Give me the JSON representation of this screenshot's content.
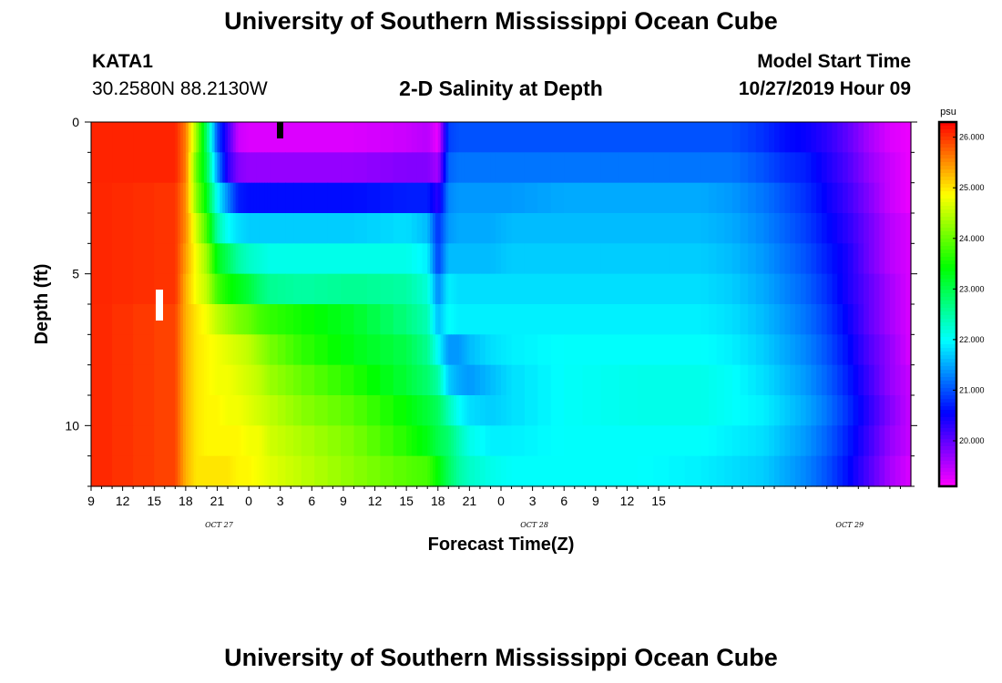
{
  "header": {
    "title": "University of Southern Mississippi Ocean Cube",
    "station": "KATA1",
    "coords": "30.2580N 88.2130W",
    "plot_title": "2-D Salinity at Depth",
    "model_label": "Model Start Time",
    "model_time": "10/27/2019 Hour 09"
  },
  "footer": {
    "title": "University of Southern Mississippi Ocean Cube"
  },
  "chart_data": {
    "type": "heatmap",
    "title": "2-D Salinity at Depth",
    "xlabel": "Forecast Time(Z)",
    "ylabel": "Depth (ft)",
    "x_tick_labels": [
      "9",
      "12",
      "15",
      "18",
      "21",
      "0",
      "3",
      "6",
      "9",
      "12",
      "15",
      "18",
      "21",
      "0",
      "3",
      "6",
      "9",
      "12",
      "15"
    ],
    "x_date_labels": [
      {
        "label": "OCT 27",
        "hour_offset": 12
      },
      {
        "label": "OCT 28",
        "hour_offset": 42
      },
      {
        "label": "OCT 29",
        "hour_offset": 72
      }
    ],
    "x_range_hours": [
      0,
      78
    ],
    "y_ticks": [
      0,
      5,
      10
    ],
    "y_range": [
      0,
      12
    ],
    "colorbar": {
      "unit": "psu",
      "ticks": [
        "20.000",
        "21.000",
        "22.000",
        "23.000",
        "24.000",
        "25.000",
        "26.000"
      ],
      "range": [
        19.1,
        26.3
      ]
    },
    "depth_levels_ft": [
      0.5,
      1.5,
      2.5,
      3.5,
      4.5,
      5.5,
      6.5,
      7.5,
      8.5,
      9.5,
      10.5,
      11.5
    ],
    "time_breakpoints_hours": [
      0,
      8,
      9,
      10,
      11,
      12,
      13,
      14,
      15,
      16,
      17,
      20,
      25,
      30,
      32,
      33,
      34,
      35,
      36,
      38,
      40,
      45,
      52,
      58,
      61,
      64,
      66,
      68,
      70,
      72,
      74,
      76,
      78
    ],
    "salinity_psu": [
      [
        26.1,
        26.1,
        25.6,
        24.3,
        22.8,
        21.0,
        20.2,
        19.4,
        19.3,
        19.3,
        19.3,
        19.3,
        19.3,
        19.4,
        19.5,
        19.2,
        20.9,
        21.0,
        21.0,
        21.0,
        21.0,
        21.0,
        21.0,
        21.0,
        21.0,
        20.8,
        20.6,
        20.5,
        20.3,
        20.0,
        19.6,
        19.3,
        19.2
      ],
      [
        26.1,
        26.1,
        25.6,
        24.0,
        23.0,
        21.4,
        20.3,
        19.8,
        19.7,
        19.7,
        19.7,
        19.7,
        19.7,
        19.8,
        19.8,
        19.6,
        21.1,
        21.2,
        21.2,
        21.2,
        21.2,
        21.2,
        21.2,
        21.2,
        21.2,
        21.0,
        20.8,
        20.7,
        20.4,
        20.1,
        19.7,
        19.4,
        19.2
      ],
      [
        26.1,
        26.0,
        25.5,
        24.2,
        23.3,
        22.0,
        21.3,
        20.7,
        20.6,
        20.6,
        20.6,
        20.6,
        20.6,
        20.7,
        20.7,
        20.3,
        21.3,
        21.4,
        21.4,
        21.4,
        21.4,
        21.5,
        21.5,
        21.5,
        21.4,
        21.2,
        21.0,
        20.8,
        20.5,
        20.2,
        19.8,
        19.4,
        19.2
      ],
      [
        26.1,
        26.0,
        25.5,
        24.6,
        23.8,
        22.5,
        22.0,
        21.8,
        21.7,
        21.7,
        21.7,
        21.7,
        21.7,
        21.8,
        21.6,
        20.8,
        21.4,
        21.5,
        21.5,
        21.5,
        21.6,
        21.6,
        21.6,
        21.6,
        21.5,
        21.3,
        21.1,
        20.9,
        20.6,
        20.3,
        19.9,
        19.5,
        19.3
      ],
      [
        26.1,
        26.0,
        25.4,
        24.8,
        24.3,
        23.3,
        22.9,
        22.5,
        22.3,
        22.2,
        22.1,
        22.1,
        22.1,
        22.1,
        21.9,
        20.9,
        21.6,
        21.6,
        21.6,
        21.6,
        21.7,
        21.7,
        21.7,
        21.7,
        21.6,
        21.4,
        21.2,
        21.0,
        20.7,
        20.4,
        19.9,
        19.5,
        19.3
      ],
      [
        26.1,
        26.0,
        25.3,
        24.8,
        24.5,
        23.8,
        23.5,
        23.3,
        23.1,
        22.8,
        22.6,
        22.5,
        22.6,
        22.5,
        22.2,
        21.3,
        21.9,
        21.8,
        21.8,
        21.8,
        21.8,
        21.8,
        21.8,
        21.8,
        21.7,
        21.5,
        21.3,
        21.1,
        20.8,
        20.4,
        20.0,
        19.6,
        19.3
      ],
      [
        26.1,
        25.9,
        25.3,
        25.0,
        24.8,
        24.5,
        24.3,
        24.1,
        24.0,
        23.8,
        23.7,
        23.5,
        23.2,
        22.7,
        22.4,
        21.6,
        22.0,
        21.9,
        21.9,
        21.9,
        21.9,
        21.9,
        21.9,
        21.9,
        21.8,
        21.6,
        21.4,
        21.2,
        20.9,
        20.5,
        20.0,
        19.6,
        19.3
      ],
      [
        26.1,
        25.9,
        25.3,
        25.0,
        24.9,
        24.8,
        24.7,
        24.6,
        24.5,
        24.3,
        24.1,
        23.7,
        23.3,
        23.0,
        22.6,
        22.0,
        21.4,
        21.4,
        21.6,
        21.8,
        21.9,
        22.0,
        22.0,
        22.0,
        21.9,
        21.7,
        21.5,
        21.3,
        21.0,
        20.6,
        20.1,
        19.7,
        19.3
      ],
      [
        26.1,
        25.9,
        25.3,
        25.0,
        24.9,
        24.8,
        24.8,
        24.7,
        24.6,
        24.5,
        24.3,
        24.0,
        23.6,
        23.1,
        22.8,
        22.5,
        21.7,
        21.5,
        21.4,
        21.6,
        21.8,
        22.0,
        22.1,
        22.1,
        22.0,
        21.8,
        21.6,
        21.4,
        21.1,
        20.7,
        20.2,
        19.7,
        19.4
      ],
      [
        26.1,
        25.9,
        25.3,
        25.0,
        24.9,
        24.9,
        24.8,
        24.8,
        24.7,
        24.6,
        24.5,
        24.2,
        23.9,
        23.4,
        23.1,
        22.9,
        22.4,
        22.0,
        21.8,
        21.7,
        21.8,
        22.0,
        22.1,
        22.1,
        22.0,
        21.9,
        21.7,
        21.5,
        21.2,
        20.8,
        20.3,
        19.8,
        19.4
      ],
      [
        26.1,
        25.9,
        25.3,
        25.0,
        24.9,
        24.9,
        24.9,
        24.9,
        24.8,
        24.8,
        24.6,
        24.4,
        24.1,
        23.6,
        23.3,
        23.0,
        22.8,
        22.4,
        22.1,
        21.9,
        21.9,
        22.0,
        22.0,
        22.0,
        21.9,
        21.8,
        21.6,
        21.4,
        21.1,
        20.7,
        20.2,
        19.7,
        19.4
      ],
      [
        26.1,
        25.9,
        25.3,
        25.0,
        25.0,
        25.0,
        25.0,
        24.9,
        24.9,
        24.8,
        24.7,
        24.5,
        24.2,
        23.9,
        23.8,
        23.4,
        22.9,
        22.5,
        22.3,
        22.1,
        22.0,
        22.0,
        22.0,
        21.9,
        21.8,
        21.7,
        21.5,
        21.3,
        21.0,
        20.6,
        20.1,
        19.6,
        19.3
      ]
    ]
  }
}
